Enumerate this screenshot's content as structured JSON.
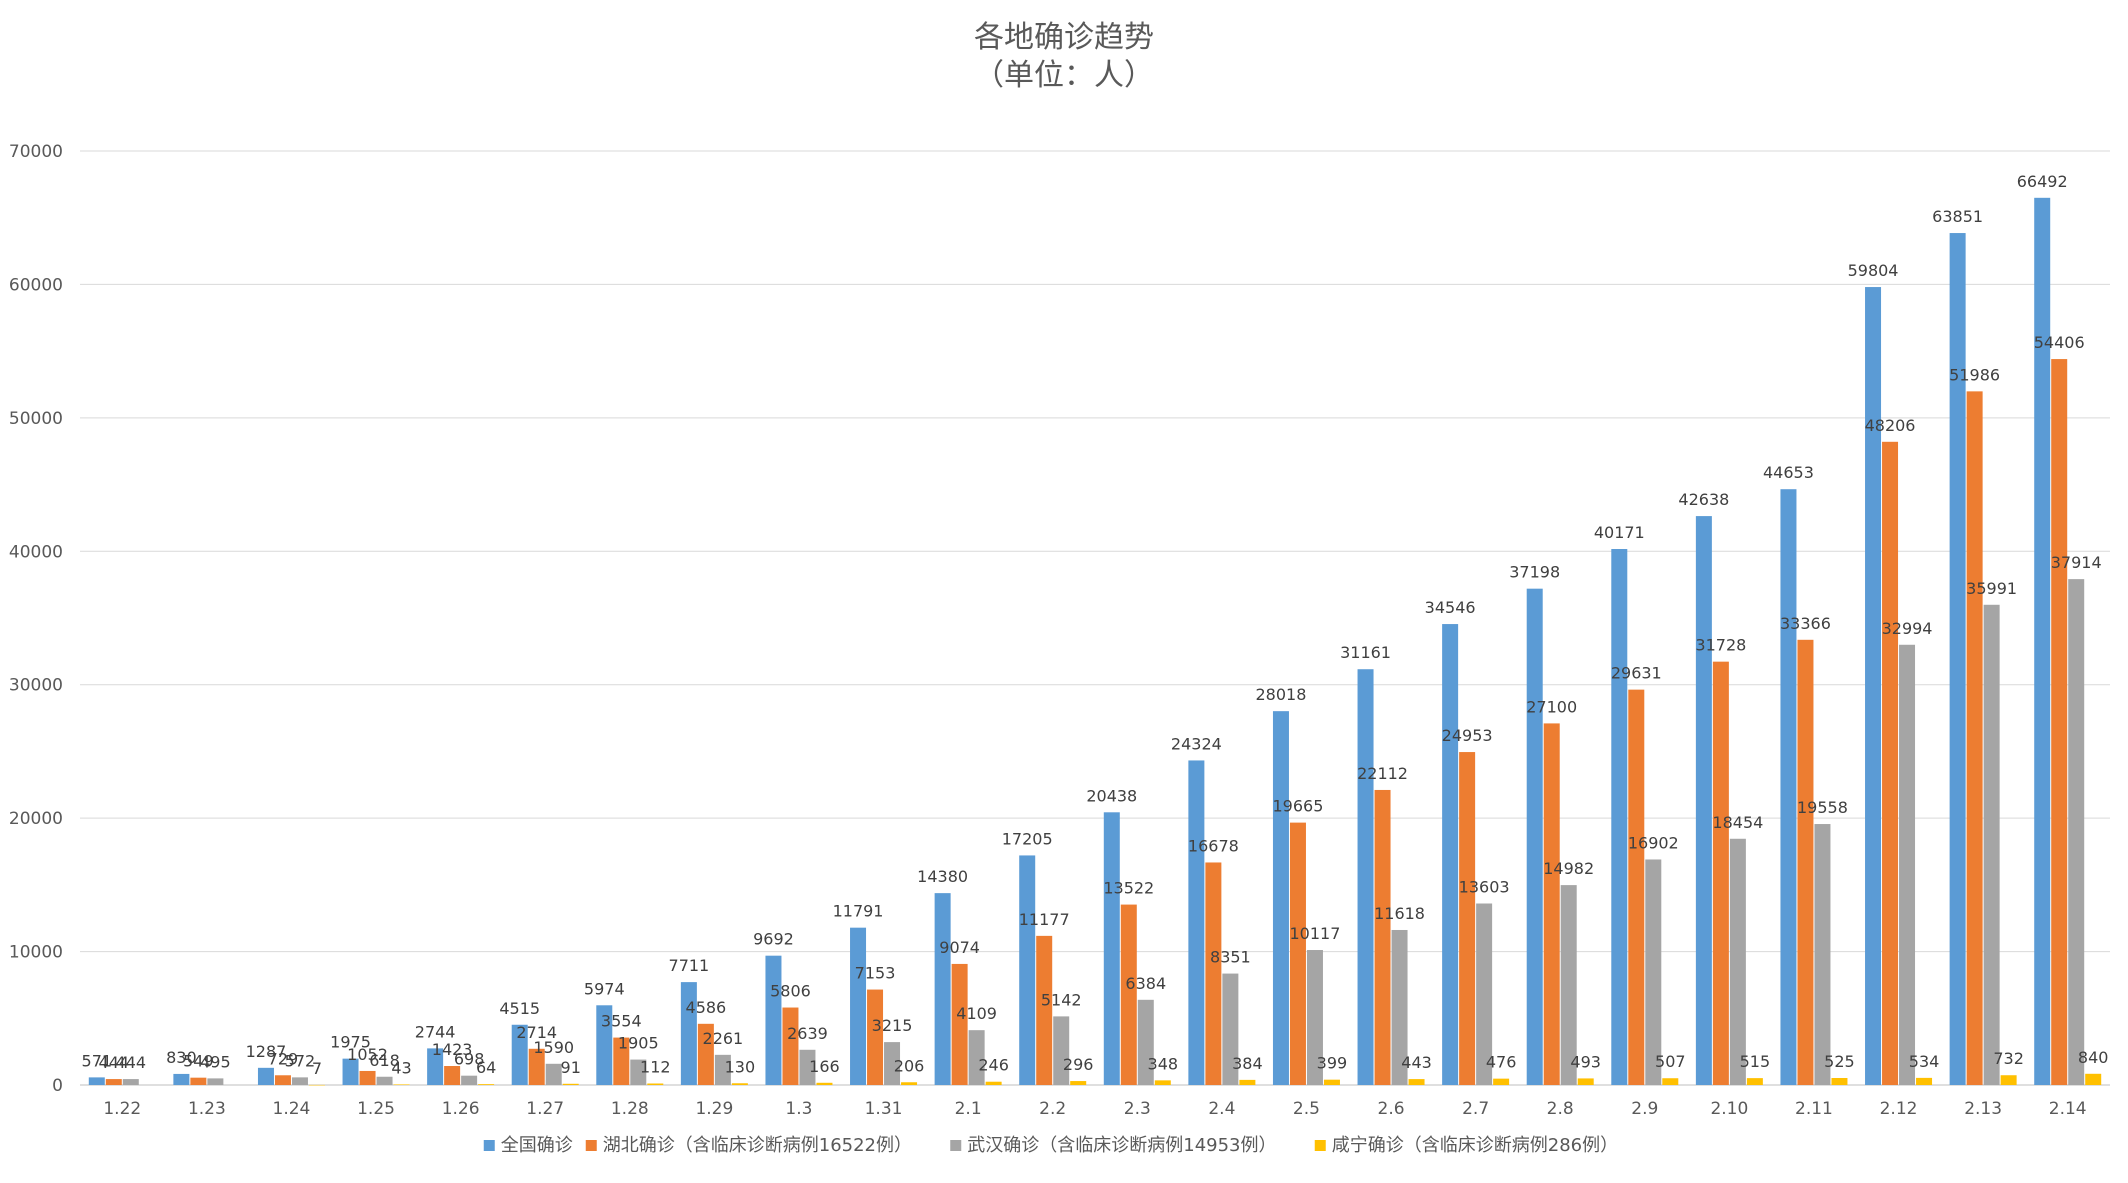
{
  "chart_data": {
    "type": "bar",
    "title": "各地确诊趋势",
    "subtitle": "（单位：人）",
    "xlabel": "",
    "ylabel": "",
    "ylim": [
      0,
      70000
    ],
    "yticks": [
      0,
      10000,
      20000,
      30000,
      40000,
      50000,
      60000,
      70000
    ],
    "grid": true,
    "legend_position": "bottom",
    "categories": [
      "1.22",
      "1.23",
      "1.24",
      "1.25",
      "1.26",
      "1.27",
      "1.28",
      "1.29",
      "1.3",
      "1.31",
      "2.1",
      "2.2",
      "2.3",
      "2.4",
      "2.5",
      "2.6",
      "2.7",
      "2.8",
      "2.9",
      "2.10",
      "2.11",
      "2.12",
      "2.13",
      "2.14"
    ],
    "series": [
      {
        "name": "全国确诊",
        "color": "#5B9BD5",
        "values": [
          571,
          830,
          1287,
          1975,
          2744,
          4515,
          5974,
          7711,
          9692,
          11791,
          14380,
          17205,
          20438,
          24324,
          28018,
          31161,
          34546,
          37198,
          40171,
          42638,
          44653,
          59804,
          63851,
          66492
        ]
      },
      {
        "name": "湖北确诊（含临床诊断病例16522例）",
        "color": "#ED7D31",
        "values": [
          444,
          549,
          729,
          1052,
          1423,
          2714,
          3554,
          4586,
          5806,
          7153,
          9074,
          11177,
          13522,
          16678,
          19665,
          22112,
          24953,
          27100,
          29631,
          31728,
          33366,
          48206,
          51986,
          54406
        ]
      },
      {
        "name": "武汉确诊（含临床诊断病例14953例）",
        "color": "#A5A5A5",
        "values": [
          444,
          495,
          572,
          618,
          698,
          1590,
          1905,
          2261,
          2639,
          3215,
          4109,
          5142,
          6384,
          8351,
          10117,
          11618,
          13603,
          14982,
          16902,
          18454,
          19558,
          32994,
          35991,
          37914
        ]
      },
      {
        "name": "咸宁确诊（含临床诊断病例286例）",
        "color": "#FFC000",
        "values": [
          null,
          null,
          7,
          43,
          64,
          91,
          112,
          130,
          166,
          206,
          246,
          296,
          348,
          384,
          399,
          443,
          476,
          493,
          507,
          515,
          525,
          534,
          732,
          840
        ]
      }
    ]
  }
}
